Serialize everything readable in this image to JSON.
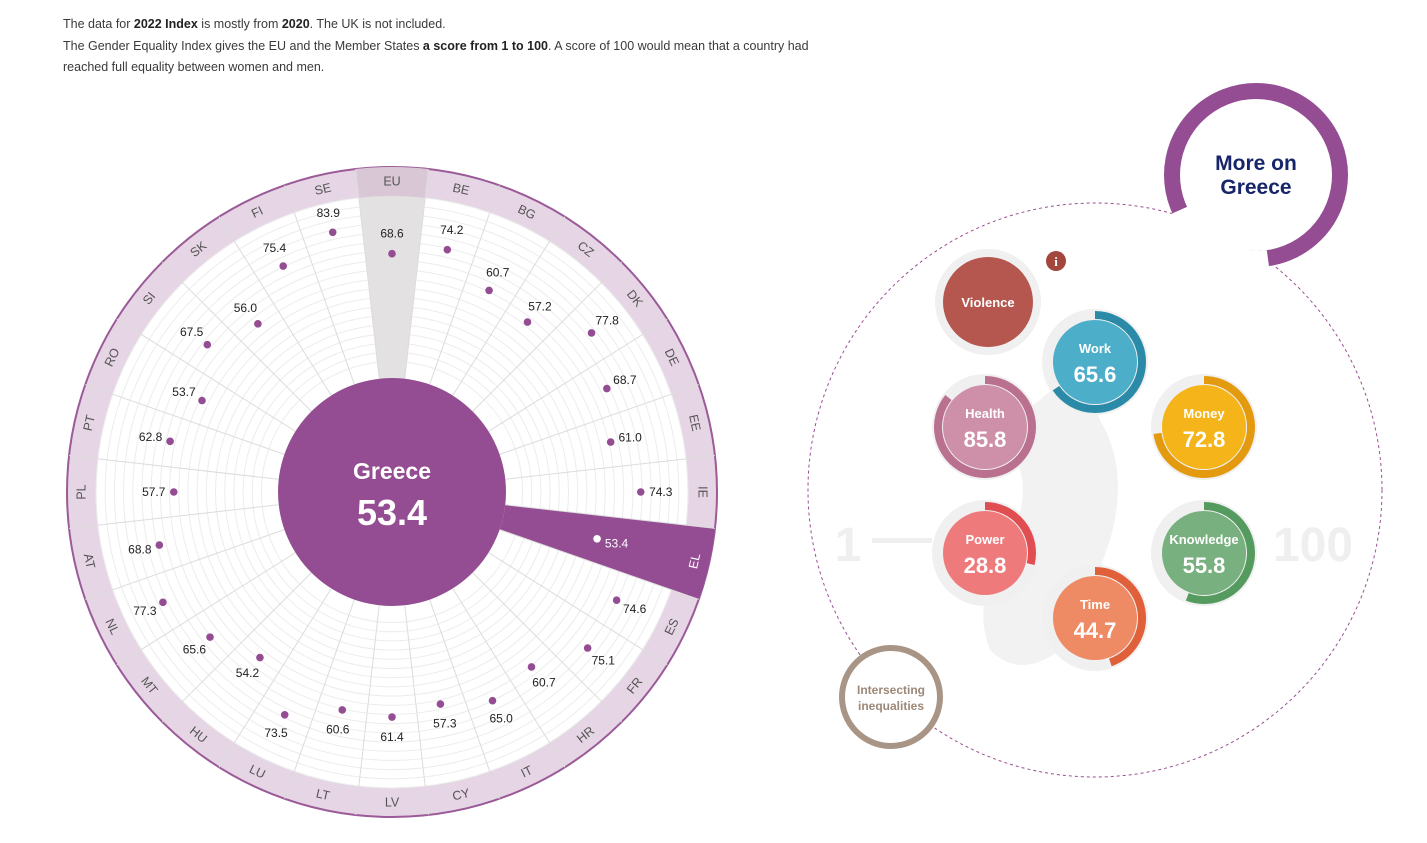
{
  "intro": {
    "line1_a": "The data for ",
    "line1_b": "2022 Index",
    "line1_c": " is mostly from ",
    "line1_d": "2020",
    "line1_e": ". The UK is not included.",
    "line2_a": "The Gender Equality Index gives the EU and the Member States ",
    "line2_b": "a score from 1 to 100",
    "line2_c": ". A score of 100 would mean that a country had reached full equality between women and men."
  },
  "center": {
    "country": "Greece",
    "score": "53.4"
  },
  "more_button": {
    "line1": "More on",
    "line2": "Greece"
  },
  "info_icon": "i",
  "scale": {
    "min": "1",
    "max": "100"
  },
  "intersecting": {
    "line1": "Intersecting",
    "line2": "inequalities"
  },
  "colors": {
    "accent": "#944C92",
    "ring": "#E6D5E5",
    "ring_border": "#9B5A98",
    "eu_sector": "#E4E1E2",
    "navy": "#17256A"
  },
  "chart_data": {
    "type": "radial-dot",
    "title": "",
    "scale_min": 1,
    "scale_max": 100,
    "selected": "EL",
    "countries": [
      {
        "code": "EU",
        "value": 68.6
      },
      {
        "code": "BE",
        "value": 74.2
      },
      {
        "code": "BG",
        "value": 60.7
      },
      {
        "code": "CZ",
        "value": 57.2
      },
      {
        "code": "DK",
        "value": 77.8
      },
      {
        "code": "DE",
        "value": 68.7
      },
      {
        "code": "EE",
        "value": 61.0
      },
      {
        "code": "IE",
        "value": 74.3
      },
      {
        "code": "EL",
        "value": 53.4
      },
      {
        "code": "ES",
        "value": 74.6
      },
      {
        "code": "FR",
        "value": 75.1
      },
      {
        "code": "HR",
        "value": 60.7
      },
      {
        "code": "IT",
        "value": 65.0
      },
      {
        "code": "CY",
        "value": 57.3
      },
      {
        "code": "LV",
        "value": 61.4
      },
      {
        "code": "LT",
        "value": 60.6
      },
      {
        "code": "LU",
        "value": 73.5
      },
      {
        "code": "HU",
        "value": 54.2
      },
      {
        "code": "MT",
        "value": 65.6
      },
      {
        "code": "NL",
        "value": 77.3
      },
      {
        "code": "AT",
        "value": 68.8
      },
      {
        "code": "PL",
        "value": 57.7
      },
      {
        "code": "PT",
        "value": 62.8
      },
      {
        "code": "RO",
        "value": 53.7
      },
      {
        "code": "SI",
        "value": 67.5
      },
      {
        "code": "SK",
        "value": 56.0
      },
      {
        "code": "FI",
        "value": 75.4
      },
      {
        "code": "SE",
        "value": 83.9
      }
    ],
    "domains": [
      {
        "name": "Violence",
        "value": null,
        "color": "#B5574E",
        "arc": "#9E4A43"
      },
      {
        "name": "Work",
        "value": 65.6,
        "color": "#4DAEC9",
        "arc": "#2A8AA8"
      },
      {
        "name": "Money",
        "value": 72.8,
        "color": "#F5B41A",
        "arc": "#E49A0E"
      },
      {
        "name": "Health",
        "value": 85.8,
        "color": "#CE90A8",
        "arc": "#B9718F"
      },
      {
        "name": "Power",
        "value": 28.8,
        "color": "#EF7A7B",
        "arc": "#E04E52"
      },
      {
        "name": "Knowledge",
        "value": 55.8,
        "color": "#78B07F",
        "arc": "#559A5E"
      },
      {
        "name": "Time",
        "value": 44.7,
        "color": "#EE8A64",
        "arc": "#E0603A"
      }
    ]
  }
}
